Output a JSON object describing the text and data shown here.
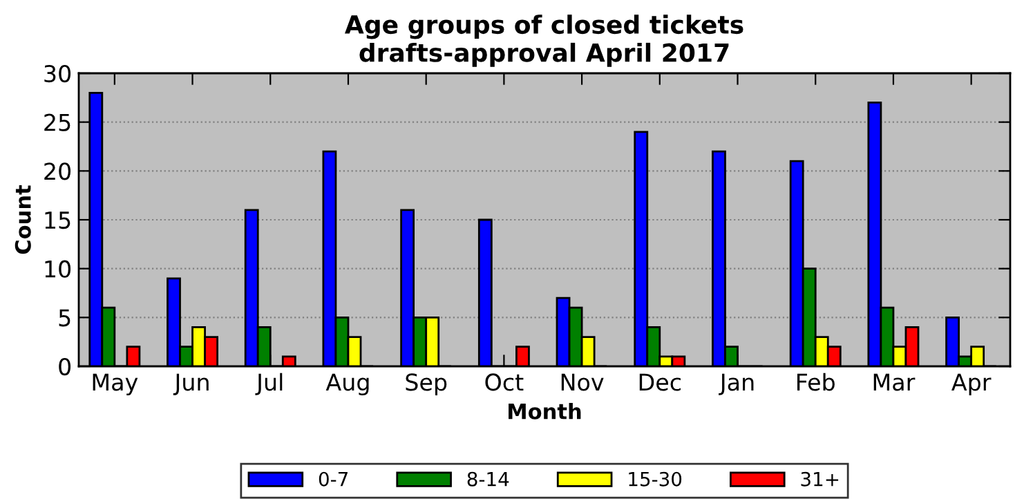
{
  "chart_data": {
    "type": "bar",
    "title": "Age groups of closed tickets\ndrafts-approval April 2017",
    "xlabel": "Month",
    "ylabel": "Count",
    "categories": [
      "May",
      "Jun",
      "Jul",
      "Aug",
      "Sep",
      "Oct",
      "Nov",
      "Dec",
      "Jan",
      "Feb",
      "Mar",
      "Apr"
    ],
    "series": [
      {
        "name": "0-7",
        "color": "#0000ff",
        "values": [
          28,
          9,
          16,
          22,
          16,
          15,
          7,
          24,
          22,
          21,
          27,
          5
        ]
      },
      {
        "name": "8-14",
        "color": "#008000",
        "values": [
          6,
          2,
          4,
          5,
          5,
          0,
          6,
          4,
          2,
          10,
          6,
          1
        ]
      },
      {
        "name": "15-30",
        "color": "#ffff00",
        "values": [
          0,
          4,
          0,
          3,
          5,
          0,
          3,
          1,
          0,
          3,
          2,
          2
        ]
      },
      {
        "name": "31+",
        "color": "#ff0000",
        "values": [
          2,
          3,
          1,
          0,
          0,
          2,
          0,
          1,
          0,
          2,
          4,
          0
        ]
      }
    ],
    "ylim": [
      0,
      30
    ],
    "yticks": [
      0,
      5,
      10,
      15,
      20,
      25,
      30
    ],
    "grid": "y",
    "legend": "bottom"
  }
}
